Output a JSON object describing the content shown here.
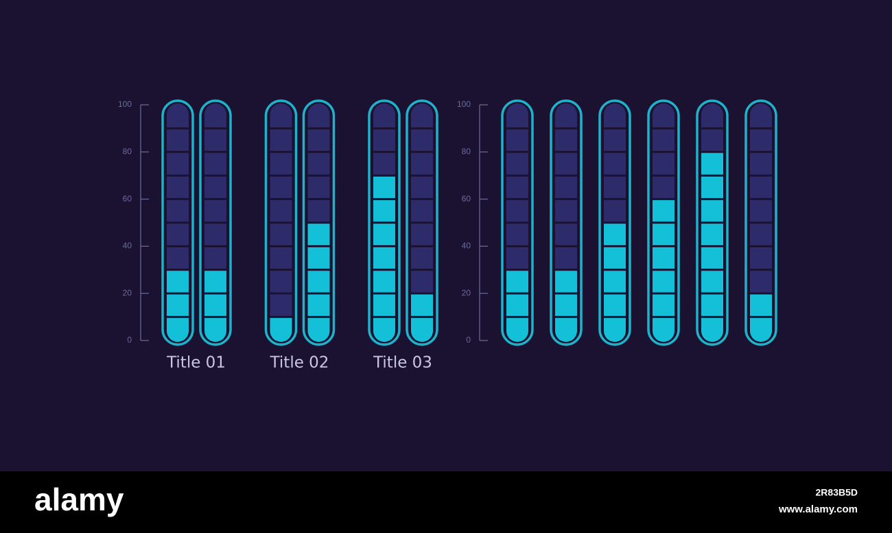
{
  "chart_data": [
    {
      "type": "bar",
      "categories": [
        "Title 01",
        "Title 02",
        "Title 03"
      ],
      "series": [
        {
          "color": "#13c0d8",
          "values": [
            30,
            10,
            70
          ]
        },
        {
          "color": "#13c0d8",
          "values": [
            30,
            50,
            20
          ]
        }
      ],
      "ylim": [
        0,
        100
      ],
      "yticks": [
        0,
        20,
        40,
        60,
        80,
        100
      ]
    },
    {
      "type": "bar",
      "categories": [
        null,
        null,
        null,
        null,
        null,
        null
      ],
      "values": [
        30,
        30,
        50,
        60,
        80,
        20
      ],
      "color": "#13c0d8",
      "ylim": [
        0,
        100
      ],
      "yticks": [
        0,
        20,
        40,
        60,
        80,
        100
      ]
    }
  ],
  "footer": {
    "brand": "alamy",
    "image_id": "2R83B5D",
    "url": "www.alamy.com"
  }
}
